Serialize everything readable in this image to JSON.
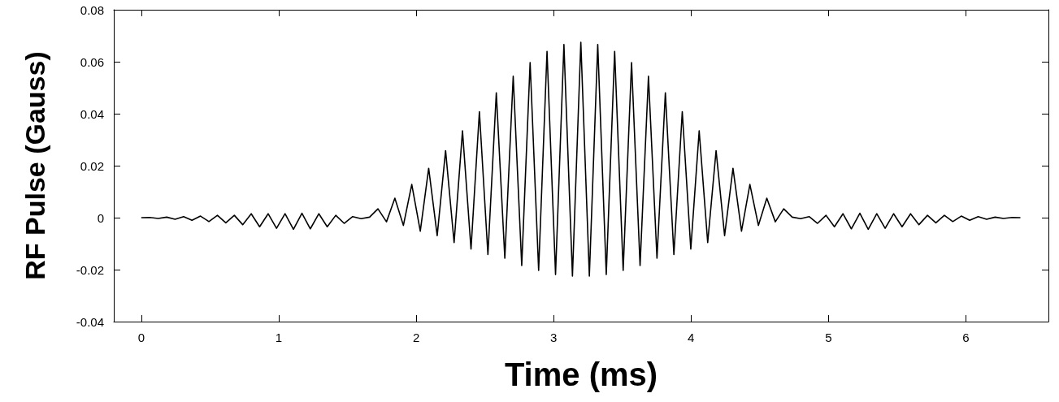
{
  "chart_data": {
    "type": "line",
    "xlabel": "Time (ms)",
    "ylabel": "RF Pulse (Gauss)",
    "xlim": [
      -0.2,
      6.6
    ],
    "xticks": [
      0,
      1,
      2,
      3,
      4,
      5,
      6
    ],
    "ylim": [
      -0.04,
      0.08
    ],
    "yticks": [
      -0.04,
      -0.02,
      0,
      0.02,
      0.04,
      0.06,
      0.08
    ],
    "grid": false,
    "marker": "none",
    "line_style": "solid",
    "series": [
      {
        "color": "#000000",
        "x": [
          0,
          0.062,
          0.123,
          0.185,
          0.246,
          0.308,
          0.369,
          0.431,
          0.492,
          0.554,
          0.615,
          0.677,
          0.738,
          0.8,
          0.861,
          0.923,
          0.984,
          1.046,
          1.107,
          1.169,
          1.23,
          1.292,
          1.353,
          1.415,
          1.476,
          1.538,
          1.599,
          1.661,
          1.722,
          1.784,
          1.845,
          1.907,
          1.968,
          2.03,
          2.091,
          2.153,
          2.214,
          2.276,
          2.337,
          2.399,
          2.46,
          2.522,
          2.583,
          2.645,
          2.706,
          2.768,
          2.829,
          2.891,
          2.952,
          3.014,
          3.075,
          3.137,
          3.198,
          3.26,
          3.321,
          3.383,
          3.444,
          3.506,
          3.567,
          3.629,
          3.69,
          3.752,
          3.813,
          3.875,
          3.936,
          3.998,
          4.059,
          4.121,
          4.182,
          4.244,
          4.305,
          4.367,
          4.428,
          4.49,
          4.551,
          4.613,
          4.674,
          4.736,
          4.797,
          4.859,
          4.92,
          4.982,
          5.043,
          5.105,
          5.166,
          5.228,
          5.289,
          5.351,
          5.412,
          5.474,
          5.535,
          5.597,
          5.658,
          5.72,
          5.781,
          5.843,
          5.904,
          5.966,
          6.027,
          6.089,
          6.15,
          6.212,
          6.273,
          6.335,
          6.396
        ],
        "values": [
          0,
          0.0001,
          -0.0003,
          0.0002,
          -0.0006,
          0.0004,
          -0.001,
          0.0006,
          -0.0015,
          0.0009,
          -0.002,
          0.0009,
          -0.0027,
          0.0015,
          -0.0035,
          0.0015,
          -0.0041,
          0.0015,
          -0.0045,
          0.0017,
          -0.0043,
          0.0015,
          -0.0035,
          0.0009,
          -0.0022,
          0.0004,
          -0.0004,
          0.0002,
          0.0034,
          -0.0016,
          0.0075,
          -0.003,
          0.0128,
          -0.0052,
          0.019,
          -0.0069,
          0.0258,
          -0.0096,
          0.0334,
          -0.0121,
          0.0408,
          -0.0142,
          0.048,
          -0.0156,
          0.0544,
          -0.0184,
          0.0597,
          -0.0203,
          0.064,
          -0.0219,
          0.0666,
          -0.0225,
          0.0675,
          -0.0225,
          0.0666,
          -0.0219,
          0.064,
          -0.0203,
          0.0597,
          -0.0184,
          0.0544,
          -0.0156,
          0.048,
          -0.0142,
          0.0408,
          -0.0121,
          0.0334,
          -0.0096,
          0.0258,
          -0.0069,
          0.019,
          -0.0052,
          0.0128,
          -0.003,
          0.0075,
          -0.0016,
          0.0034,
          0.0002,
          -0.0004,
          0.0004,
          -0.0022,
          0.0009,
          -0.0035,
          0.0015,
          -0.0043,
          0.0017,
          -0.0045,
          0.0015,
          -0.0041,
          0.0015,
          -0.0035,
          0.0015,
          -0.0027,
          0.0009,
          -0.002,
          0.0009,
          -0.0015,
          0.0006,
          -0.001,
          0.0004,
          -0.0006,
          0.0002,
          -0.0003,
          0.0001,
          0
        ]
      }
    ]
  }
}
